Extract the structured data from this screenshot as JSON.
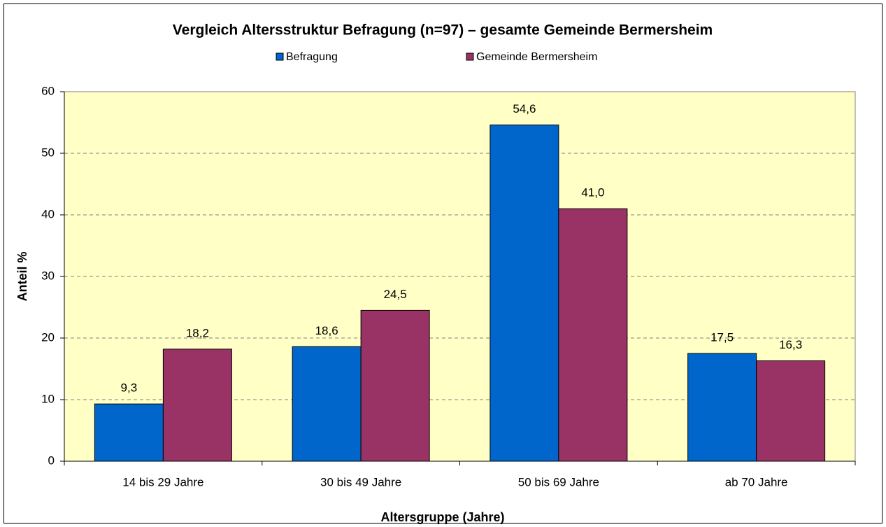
{
  "chart_data": {
    "type": "bar",
    "title": "Vergleich Altersstruktur Befragung (n=97) – gesamte Gemeinde Bermersheim",
    "x_label": "Altersgruppe (Jahre)",
    "y_label": "Anteil %",
    "categories": [
      "14 bis 29 Jahre",
      "30 bis 49 Jahre",
      "50 bis 69 Jahre",
      "ab 70 Jahre"
    ],
    "series": [
      {
        "name": "Befragung",
        "color": "#0066cc",
        "values": [
          9.3,
          18.6,
          54.6,
          17.5
        ],
        "value_labels": [
          "9,3",
          "18,6",
          "54,6",
          "17,5"
        ]
      },
      {
        "name": "Gemeinde Bermersheim",
        "color": "#993366",
        "values": [
          18.2,
          24.5,
          41.0,
          16.3
        ],
        "value_labels": [
          "18,2",
          "24,5",
          "41,0",
          "16,3"
        ]
      }
    ],
    "ylim": [
      0,
      60
    ],
    "yticks": [
      0,
      10,
      20,
      30,
      40,
      50,
      60
    ],
    "grid": true,
    "legend": "top"
  }
}
